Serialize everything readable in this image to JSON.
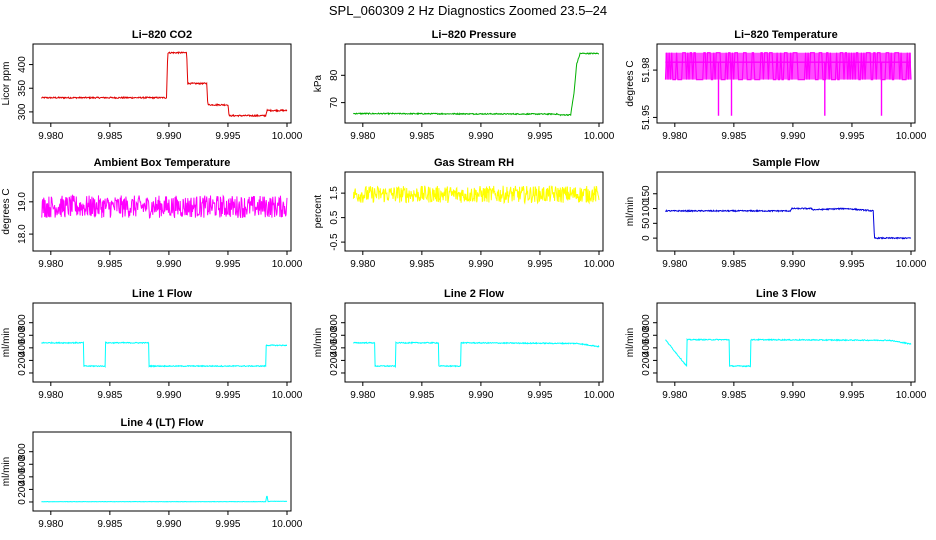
{
  "figure": {
    "title": "SPL_060309  2 Hz Diagnostics Zoomed 23.5–24"
  },
  "chart_data": [
    {
      "type": "line",
      "title": "Li−820 CO2",
      "ylabel": "Licor ppm",
      "color": "#e00000",
      "xlim": [
        9.979,
        10.0
      ],
      "xticks": [
        "9.980",
        "9.985",
        "9.990",
        "9.995",
        "10.000"
      ],
      "ylim": [
        285,
        435
      ],
      "yticks": [
        "300",
        "350",
        "400"
      ],
      "x": [
        9.9792,
        9.9898,
        9.9899,
        9.9915,
        9.9916,
        9.9932,
        9.9933,
        9.995,
        9.9951,
        9.9982,
        9.9983,
        10.0
      ],
      "y": [
        330,
        330,
        425,
        425,
        360,
        360,
        315,
        315,
        292,
        292,
        303,
        303
      ],
      "noise": 1.5
    },
    {
      "type": "line",
      "title": "Li−820 Pressure",
      "ylabel": "kPa",
      "color": "#00b000",
      "xlim": [
        9.979,
        10.0
      ],
      "xticks": [
        "9.980",
        "9.985",
        "9.990",
        "9.995",
        "10.000"
      ],
      "ylim": [
        64,
        90
      ],
      "yticks": [
        "70",
        "80"
      ],
      "x": [
        9.9792,
        9.9965,
        9.9966,
        9.9976,
        9.9979,
        9.9981,
        9.9984,
        10.0
      ],
      "y": [
        66,
        65.8,
        65.5,
        65.5,
        74,
        84,
        88,
        88
      ],
      "noise": 0.2
    },
    {
      "type": "line",
      "title": "Li−820 Temperature",
      "ylabel": "degrees C",
      "color": "#ff00ff",
      "xlim": [
        9.979,
        10.0
      ],
      "xticks": [
        "9.980",
        "9.985",
        "9.990",
        "9.995",
        "10.000"
      ],
      "ylim": [
        51.949,
        51.994
      ],
      "yticks": [
        "51.95",
        "51.98"
      ],
      "x": [
        9.9792,
        9.9837,
        9.9837,
        9.9837,
        9.9848,
        9.9848,
        9.9848,
        9.9927,
        9.9927,
        9.9927,
        9.9975,
        9.9975,
        9.9975,
        10.0
      ],
      "y": [
        51.985,
        51.985,
        51.951,
        51.985,
        51.985,
        51.951,
        51.985,
        51.985,
        51.951,
        51.985,
        51.985,
        51.951,
        51.985,
        51.985
      ],
      "band": [
        51.974,
        51.991
      ],
      "noise": 0
    },
    {
      "type": "line",
      "title": "Ambient Box Temperature",
      "ylabel": "degrees C",
      "color": "#ff00ff",
      "xlim": [
        9.979,
        10.0
      ],
      "xticks": [
        "9.980",
        "9.985",
        "9.990",
        "9.995",
        "10.000"
      ],
      "ylim": [
        17.6,
        19.8
      ],
      "yticks": [
        "18.0",
        "19.0"
      ],
      "x": [
        9.9792,
        10.0
      ],
      "y": [
        18.85,
        18.85
      ],
      "noise": 0.35
    },
    {
      "type": "line",
      "title": "Gas Stream RH",
      "ylabel": "percent",
      "color": "#ffff00",
      "xlim": [
        9.979,
        10.0
      ],
      "xticks": [
        "9.980",
        "9.985",
        "9.990",
        "9.995",
        "10.000"
      ],
      "ylim": [
        -0.7,
        2.2
      ],
      "yticks": [
        "-0.5",
        "0.5",
        "1.5"
      ],
      "x": [
        9.9792,
        10.0
      ],
      "y": [
        1.45,
        1.45
      ],
      "noise": 0.35
    },
    {
      "type": "line",
      "title": "Sample Flow",
      "ylabel": "ml/min",
      "color": "#0000dd",
      "xlim": [
        9.979,
        10.0
      ],
      "xticks": [
        "9.980",
        "9.985",
        "9.990",
        "9.995",
        "10.000"
      ],
      "ylim": [
        -30,
        210
      ],
      "yticks": [
        "0",
        "50",
        "100",
        "150"
      ],
      "x": [
        9.9792,
        9.9898,
        9.9899,
        9.9916,
        9.9917,
        9.9945,
        9.9968,
        9.9969,
        10.0
      ],
      "y": [
        92,
        92,
        100,
        100,
        96,
        100,
        92,
        0,
        0
      ],
      "noise": 2
    },
    {
      "type": "line",
      "title": "Line 1 Flow",
      "ylabel": "ml/min",
      "color": "#00ffff",
      "xlim": [
        9.979,
        10.0
      ],
      "xticks": [
        "9.980",
        "9.985",
        "9.990",
        "9.995",
        "10.000"
      ],
      "ylim": [
        -80,
        1050
      ],
      "yticks": [
        "0",
        "200",
        "400",
        "600",
        "800"
      ],
      "x": [
        9.9792,
        9.9792,
        9.9828,
        9.9828,
        9.9846,
        9.9846,
        9.9883,
        9.9883,
        9.9982,
        9.9982,
        10.0
      ],
      "y": [
        110,
        480,
        480,
        110,
        110,
        480,
        480,
        110,
        110,
        440,
        440
      ],
      "noise": 8
    },
    {
      "type": "line",
      "title": "Line 2 Flow",
      "ylabel": "ml/min",
      "color": "#00ffff",
      "xlim": [
        9.979,
        10.0
      ],
      "xticks": [
        "9.980",
        "9.985",
        "9.990",
        "9.995",
        "10.000"
      ],
      "ylim": [
        -80,
        1050
      ],
      "yticks": [
        "0",
        "200",
        "400",
        "600",
        "800"
      ],
      "x": [
        9.9792,
        9.981,
        9.981,
        9.9828,
        9.9828,
        9.9864,
        9.9864,
        9.9883,
        9.9883,
        9.9982,
        10.0
      ],
      "y": [
        480,
        480,
        110,
        110,
        480,
        480,
        110,
        110,
        480,
        470,
        420
      ],
      "noise": 8
    },
    {
      "type": "line",
      "title": "Line 3 Flow",
      "ylabel": "ml/min",
      "color": "#00ffff",
      "xlim": [
        9.979,
        10.0
      ],
      "xticks": [
        "9.980",
        "9.985",
        "9.990",
        "9.995",
        "10.000"
      ],
      "ylim": [
        -80,
        1050
      ],
      "yticks": [
        "0",
        "200",
        "400",
        "600",
        "800"
      ],
      "x": [
        9.9792,
        9.9792,
        9.981,
        9.981,
        9.9846,
        9.9846,
        9.9864,
        9.9864,
        9.9982,
        10.0
      ],
      "y": [
        110,
        530,
        110,
        530,
        530,
        110,
        110,
        530,
        520,
        460
      ],
      "noise": 8
    },
    {
      "type": "line",
      "title": "Line 4 (LT) Flow",
      "ylabel": "ml/min",
      "color": "#00ffff",
      "xlim": [
        9.979,
        10.0
      ],
      "xticks": [
        "9.980",
        "9.985",
        "9.990",
        "9.995",
        "10.000"
      ],
      "ylim": [
        -80,
        1050
      ],
      "yticks": [
        "0",
        "200",
        "400",
        "600",
        "800"
      ],
      "x": [
        9.9792,
        9.9982,
        9.9983,
        9.9984,
        9.9986,
        10.0
      ],
      "y": [
        5,
        5,
        110,
        5,
        10,
        10
      ],
      "noise": 2
    }
  ]
}
